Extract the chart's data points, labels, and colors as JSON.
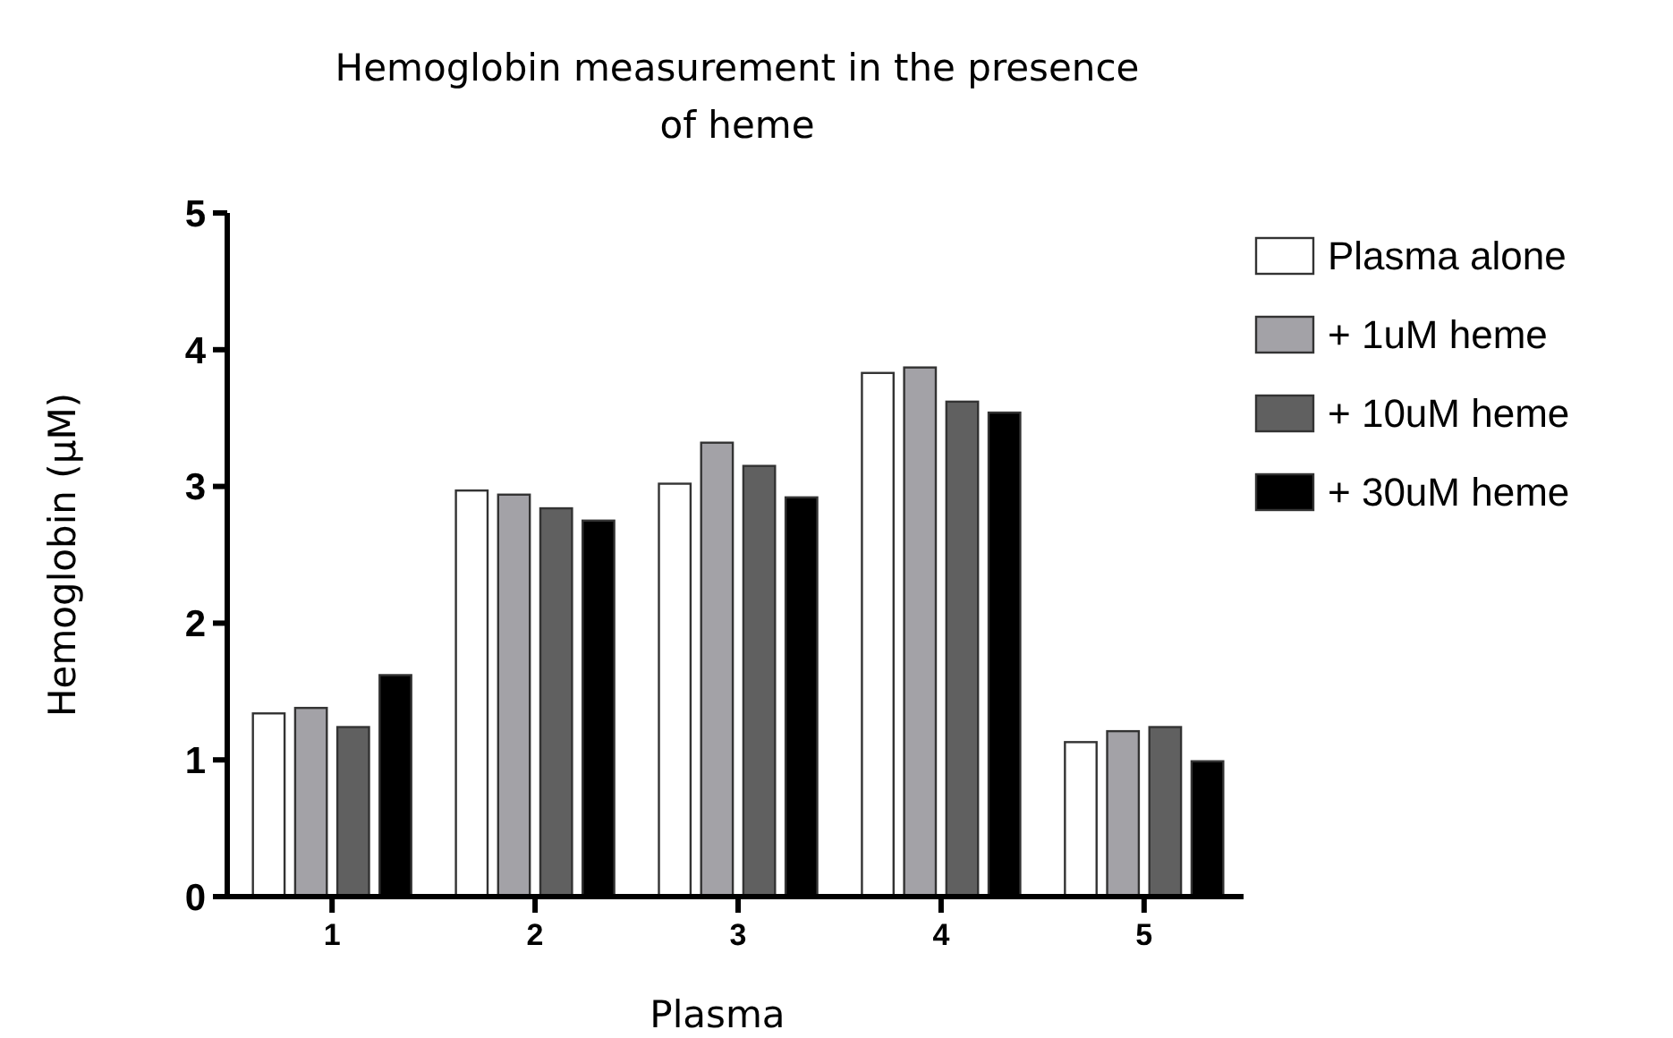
{
  "chart_data": {
    "type": "bar",
    "title": "Hemoglobin measurement in the presence of heme",
    "xlabel": "Plasma",
    "ylabel": "Hemoglobin (µM)",
    "categories": [
      "1",
      "2",
      "3",
      "4",
      "5"
    ],
    "series": [
      {
        "name": "Plasma alone",
        "color": "#ffffff",
        "values": [
          1.34,
          2.97,
          3.02,
          3.83,
          1.13
        ]
      },
      {
        "name": "+ 1uM heme",
        "color": "#a3a2a7",
        "values": [
          1.38,
          2.94,
          3.32,
          3.87,
          1.21
        ]
      },
      {
        "name": "+ 10uM heme",
        "color": "#606060",
        "values": [
          1.24,
          2.84,
          3.15,
          3.62,
          1.24
        ]
      },
      {
        "name": "+ 30uM heme",
        "color": "#000000",
        "values": [
          1.62,
          2.75,
          2.92,
          3.54,
          0.99
        ]
      }
    ],
    "ylim": [
      0,
      5
    ],
    "yticks": [
      0,
      1,
      2,
      3,
      4,
      5
    ],
    "legend": "right"
  }
}
